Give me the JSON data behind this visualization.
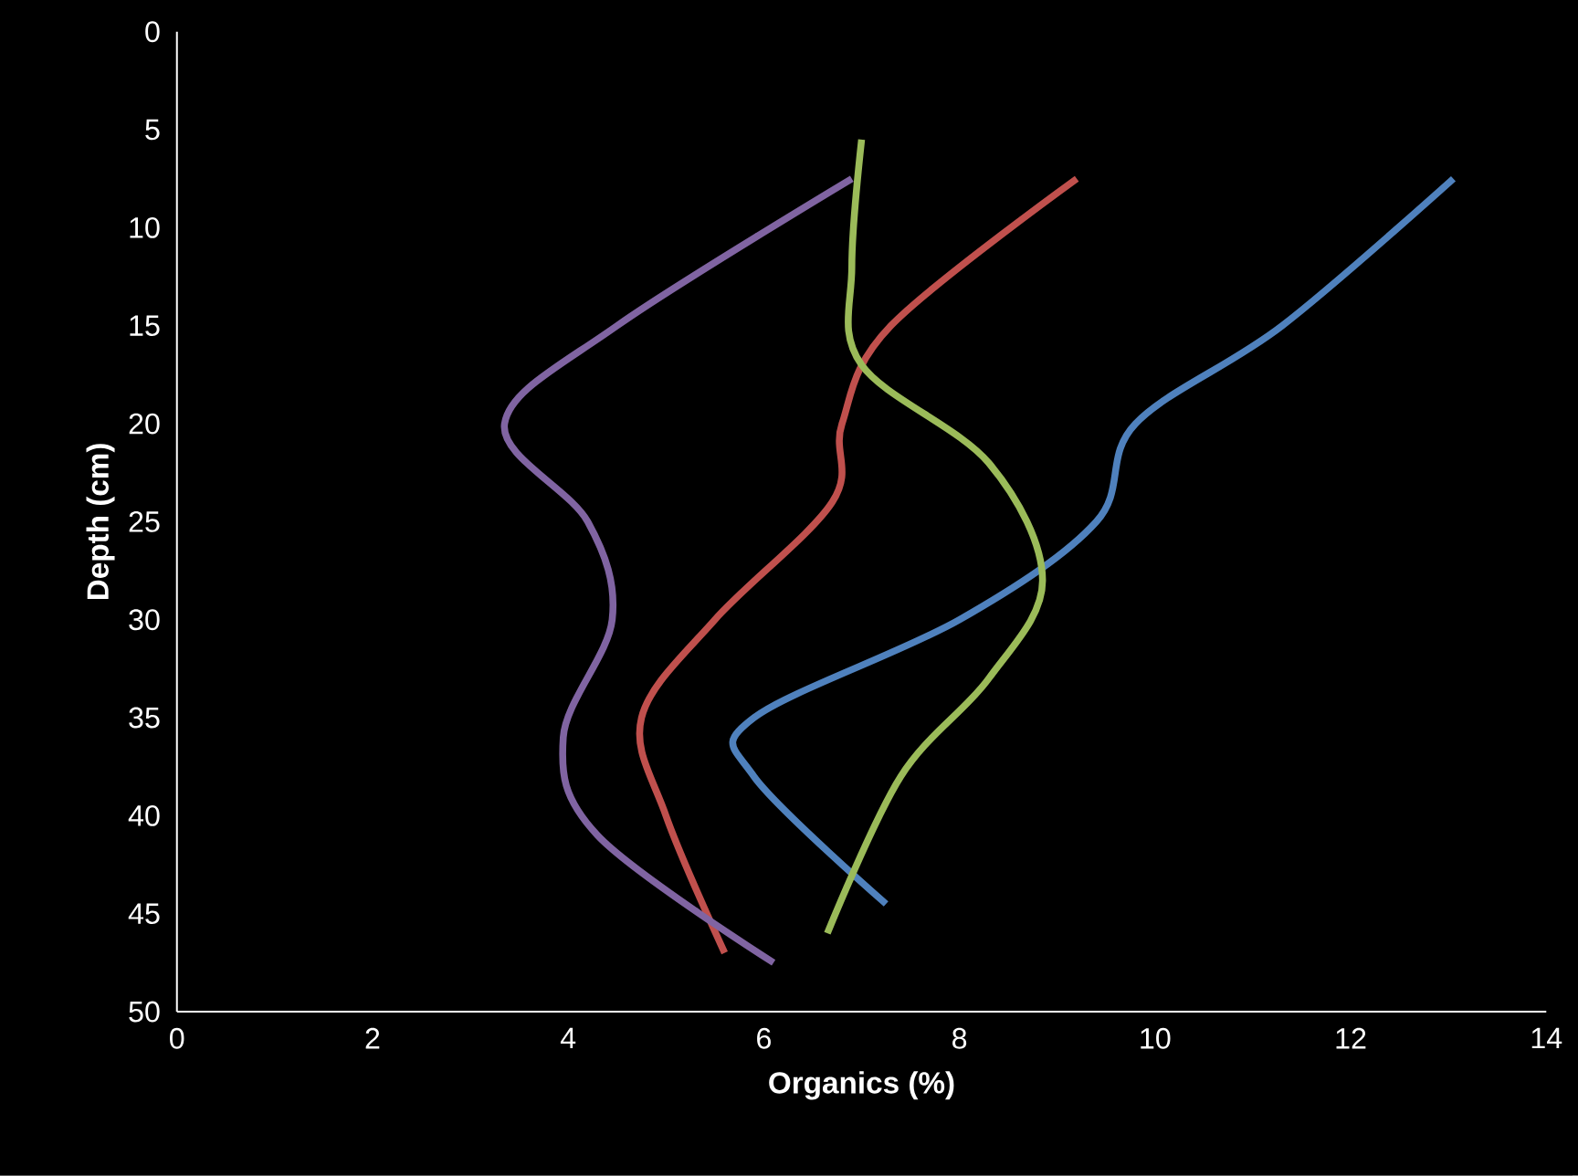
{
  "chart_data": {
    "type": "line",
    "xlabel": "Organics (%)",
    "ylabel": "Depth (cm)",
    "xlim": [
      0,
      14
    ],
    "xticks": [
      0,
      2,
      4,
      6,
      8,
      10,
      12,
      14
    ],
    "ylim": [
      50,
      0
    ],
    "yticks": [
      0,
      5,
      10,
      15,
      20,
      25,
      30,
      35,
      40,
      45,
      50
    ],
    "grid": false,
    "marker": "none",
    "line_style": "solid",
    "series": [
      {
        "color": "#4f81bd",
        "x": [
          13.05,
          11.3,
          9.8,
          9.4,
          8.0,
          5.9,
          5.9,
          7.25
        ],
        "values": [
          7.5,
          15,
          20,
          25,
          30,
          35,
          38,
          44.5
        ]
      },
      {
        "color": "#c0504d",
        "x": [
          9.2,
          7.3,
          6.8,
          6.7,
          5.5,
          4.75,
          5.0,
          5.6
        ],
        "values": [
          7.5,
          15,
          20,
          24,
          30,
          35,
          40,
          47
        ]
      },
      {
        "color": "#9bbb59",
        "x": [
          7.0,
          6.9,
          7.0,
          8.3,
          8.85,
          8.3,
          7.4,
          6.65
        ],
        "values": [
          5.5,
          12,
          17,
          22,
          28,
          33,
          38,
          46
        ]
      },
      {
        "color": "#8064a2",
        "x": [
          6.9,
          4.5,
          3.35,
          4.2,
          4.45,
          3.95,
          4.3,
          6.1
        ],
        "values": [
          7.5,
          15,
          20,
          25,
          30,
          36,
          41,
          47.5
        ]
      }
    ]
  }
}
